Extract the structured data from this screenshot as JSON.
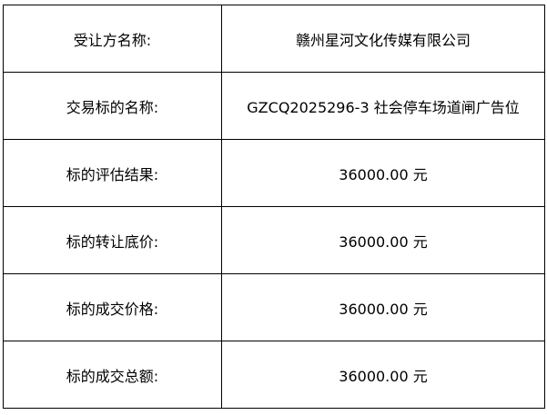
{
  "rows": [
    {
      "label": "受让方名称:",
      "value": "赣州星河文化传媒有限公司"
    },
    {
      "label": "交易标的名称:",
      "value": "GZCQ2025296-3 社会停车场道闸广告位"
    },
    {
      "label": "标的评估结果:",
      "value": "36000.00 元"
    },
    {
      "label": "标的转让底价:",
      "value": "36000.00 元"
    },
    {
      "label": "标的成交价格:",
      "value": "36000.00 元"
    },
    {
      "label": "标的成交总额:",
      "value": "36000.00 元"
    }
  ]
}
